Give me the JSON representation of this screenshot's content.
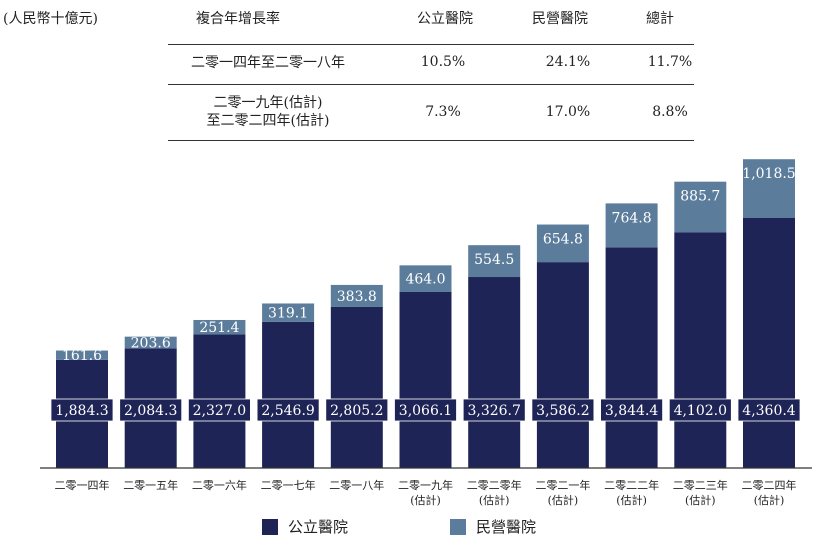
{
  "unit_label": "(人民幣十億元)",
  "cagr_table": {
    "headers": [
      "複合年增長率",
      "公立醫院",
      "民營醫院",
      "總計"
    ],
    "rows": [
      {
        "label_lines": [
          "二零一四年至二零一八年"
        ],
        "public": "10.5%",
        "private": "24.1%",
        "total": "11.7%"
      },
      {
        "label_lines": [
          "二零一九年(估計)",
          "至二零二四年(估計)"
        ],
        "public": "7.3%",
        "private": "17.0%",
        "total": "8.8%"
      }
    ]
  },
  "legend": {
    "public": "公立醫院",
    "private": "民營醫院"
  },
  "colors": {
    "public": "#1e2556",
    "private": "#5b7c9b",
    "label_text": "#ffffff",
    "public_label_bg": "#1e2556"
  },
  "chart_data": {
    "type": "bar",
    "stacked": true,
    "categories": [
      [
        "二零一四年"
      ],
      [
        "二零一五年"
      ],
      [
        "二零一六年"
      ],
      [
        "二零一七年"
      ],
      [
        "二零一八年"
      ],
      [
        "二零一九年",
        "(估計)"
      ],
      [
        "二零二零年",
        "(估計)"
      ],
      [
        "二零二一年",
        "(估計)"
      ],
      [
        "二零二二年",
        "(估計)"
      ],
      [
        "二零二三年",
        "(估計)"
      ],
      [
        "二零二四年",
        "(估計)"
      ]
    ],
    "series": [
      {
        "name": "公立醫院",
        "values": [
          1884.3,
          2084.3,
          2327.0,
          2546.9,
          2805.2,
          3066.1,
          3326.7,
          3586.2,
          3844.4,
          4102.0,
          4360.4
        ],
        "labels": [
          "1,884.3",
          "2,084.3",
          "2,327.0",
          "2,546.9",
          "2,805.2",
          "3,066.1",
          "3,326.7",
          "3,586.2",
          "3,844.4",
          "4,102.0",
          "4,360.4"
        ]
      },
      {
        "name": "民營醫院",
        "values": [
          161.6,
          203.6,
          251.4,
          319.1,
          383.8,
          464.0,
          554.5,
          654.8,
          764.8,
          885.7,
          1018.5
        ],
        "labels": [
          "161.6",
          "203.6",
          "251.4",
          "319.1",
          "383.8",
          "464.0",
          "554.5",
          "654.8",
          "764.8",
          "885.7",
          "1,018.5"
        ]
      }
    ],
    "ylim": [
      0,
      5400
    ],
    "grid": false,
    "legend_position": "bottom"
  }
}
